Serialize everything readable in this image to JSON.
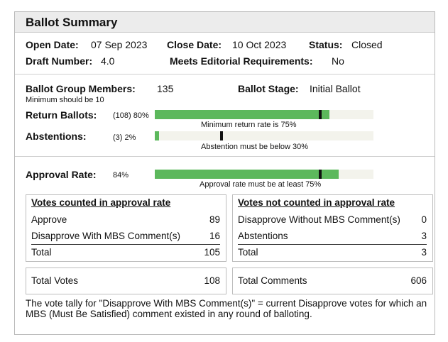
{
  "title": "Ballot Summary",
  "header": {
    "open_date_label": "Open Date:",
    "open_date": "07 Sep 2023",
    "close_date_label": "Close Date:",
    "close_date": "10 Oct 2023",
    "status_label": "Status:",
    "status": "Closed",
    "draft_label": "Draft Number:",
    "draft": "4.0",
    "editorial_label": "Meets Editorial Requirements:",
    "editorial": "No"
  },
  "group": {
    "members_label": "Ballot Group Members:",
    "members": "135",
    "members_note": "Minimum should be 10",
    "stage_label": "Ballot Stage:",
    "stage": "Initial Ballot"
  },
  "return_ballots": {
    "label": "Return Ballots:",
    "value": "(108) 80%",
    "percent": 80,
    "threshold": 75,
    "note": "Minimum return rate is 75%"
  },
  "abstentions": {
    "label": "Abstentions:",
    "value": "(3) 2%",
    "percent": 2,
    "threshold": 30,
    "note": "Abstention must be below 30%"
  },
  "approval": {
    "label": "Approval Rate:",
    "value": "84%",
    "percent": 84,
    "threshold": 75,
    "note": "Approval rate must be at least 75%"
  },
  "counted": {
    "header": "Votes counted in approval rate",
    "rows": [
      {
        "label": "Approve",
        "value": "89"
      },
      {
        "label": "Disapprove With MBS Comment(s)",
        "value": "16"
      }
    ],
    "total_label": "Total",
    "total": "105"
  },
  "not_counted": {
    "header": "Votes not counted in approval rate",
    "rows": [
      {
        "label": "Disapprove Without MBS Comment(s)",
        "value": "0"
      },
      {
        "label": "Abstentions",
        "value": "3"
      }
    ],
    "total_label": "Total",
    "total": "3"
  },
  "totals": {
    "votes_label": "Total Votes",
    "votes": "108",
    "comments_label": "Total Comments",
    "comments": "606"
  },
  "footnote": "The vote tally for \"Disapprove With MBS Comment(s)\" = current Disapprove votes for which an MBS (Must Be Satisfied) comment existed in any round of balloting.",
  "colors": {
    "fill": "#5cb85c",
    "track": "#f3f3ec",
    "marker": "#111111"
  }
}
